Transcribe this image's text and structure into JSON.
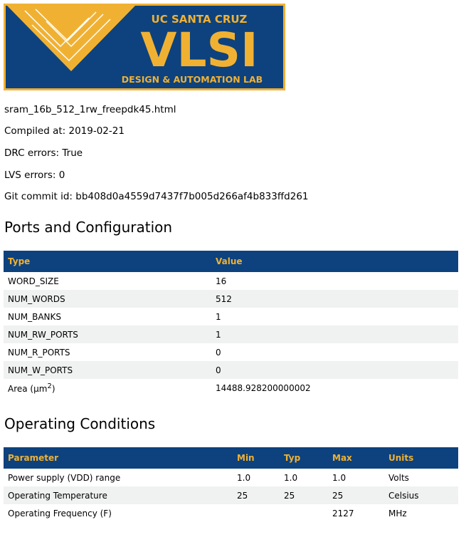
{
  "logo": {
    "top": "UC SANTA CRUZ",
    "main": "VLSI",
    "bottom": "DESIGN & AUTOMATION LAB",
    "colors": {
      "blue": "#0d427e",
      "gold": "#f0b133"
    }
  },
  "info": {
    "filename": "sram_16b_512_1rw_freepdk45.html",
    "compiled": "Compiled at: 2019-02-21",
    "drc": "DRC errors: True",
    "lvs": "LVS errors: 0",
    "git": "Git commit id: bb408d0a4559d7437f7b005d266af4b833ffd261"
  },
  "ports": {
    "title": "Ports and Configuration",
    "headers": [
      "Type",
      "Value"
    ],
    "rows": [
      [
        "WORD_SIZE",
        "16"
      ],
      [
        "NUM_WORDS",
        "512"
      ],
      [
        "NUM_BANKS",
        "1"
      ],
      [
        "NUM_RW_PORTS",
        "1"
      ],
      [
        "NUM_R_PORTS",
        "0"
      ],
      [
        "NUM_W_PORTS",
        "0"
      ]
    ],
    "area_label": "Area (µm",
    "area_sup": "2",
    "area_close": ")",
    "area_value": "14488.928200000002"
  },
  "conditions": {
    "title": "Operating Conditions",
    "headers": [
      "Parameter",
      "Min",
      "Typ",
      "Max",
      "Units"
    ],
    "rows": [
      [
        "Power supply (VDD) range",
        "1.0",
        "1.0",
        "1.0",
        "Volts"
      ],
      [
        "Operating Temperature",
        "25",
        "25",
        "25",
        "Celsius"
      ],
      [
        "Operating Frequency (F)",
        "",
        "",
        "2127",
        "MHz"
      ]
    ]
  }
}
